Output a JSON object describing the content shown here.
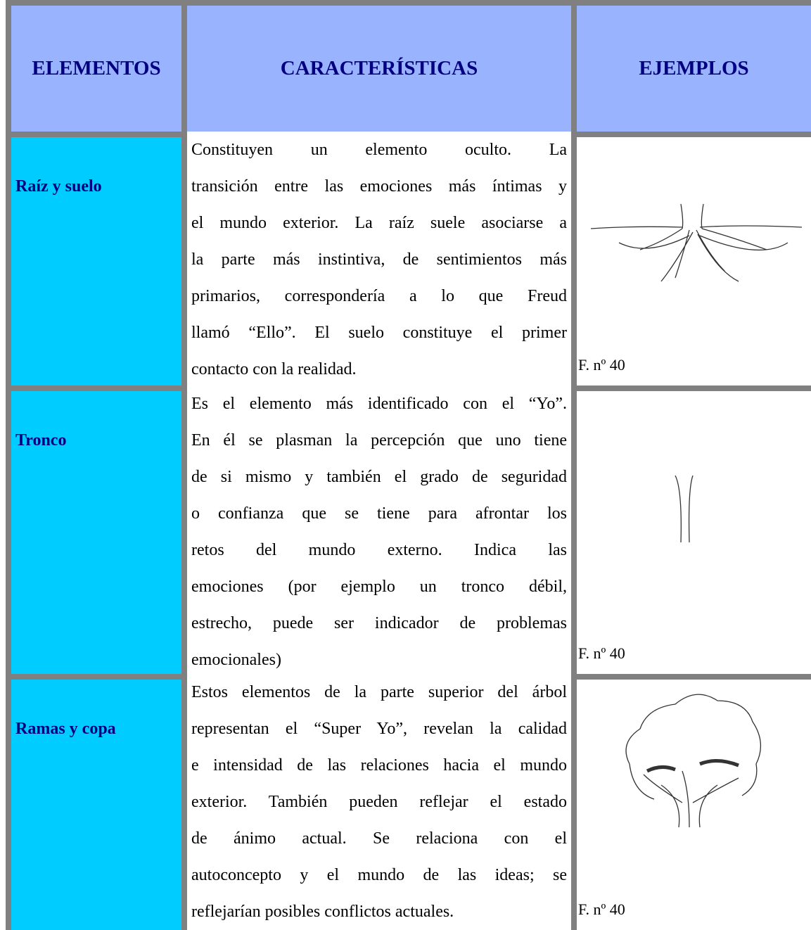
{
  "table": {
    "header": [
      "ELEMENTOS",
      "CARACTERÍSTICAS",
      "EJEMPLOS"
    ],
    "rows": [
      {
        "element": "Raíz y suelo",
        "lines": [
          "Constituyen un elemento oculto. La",
          "transición entre las emociones más íntimas y",
          "el mundo exterior. La raíz suele asociarse a",
          "la parte más instintiva, de sentimientos más",
          "primarios, correspondería a lo que Freud",
          "llamó “Ello”. El suelo constituye el primer",
          "contacto con la realidad."
        ],
        "caption": "F. nº 40"
      },
      {
        "element": "Tronco",
        "lines": [
          "Es el elemento más identificado con el “Yo”.",
          "En él se plasman la percepción que uno tiene",
          "de si mismo y también el grado de seguridad",
          "o confianza que se tiene para afrontar los",
          "retos del mundo externo. Indica las",
          "emociones (por ejemplo un tronco débil,",
          "estrecho, puede ser indicador de problemas",
          "emocionales)"
        ],
        "caption": "F. nº 40"
      },
      {
        "element": "Ramas y copa",
        "lines": [
          "Estos elementos de la parte superior del árbol",
          "representan el “Super Yo”, revelan la calidad",
          "e intensidad de las relaciones hacia el mundo",
          "exterior. También pueden reflejar el estado",
          "de ánimo actual. Se relaciona con el",
          "autoconcepto y el mundo de las ideas; se",
          "reflejarían posibles conflictos actuales."
        ],
        "caption": "F. nº 40"
      }
    ]
  }
}
